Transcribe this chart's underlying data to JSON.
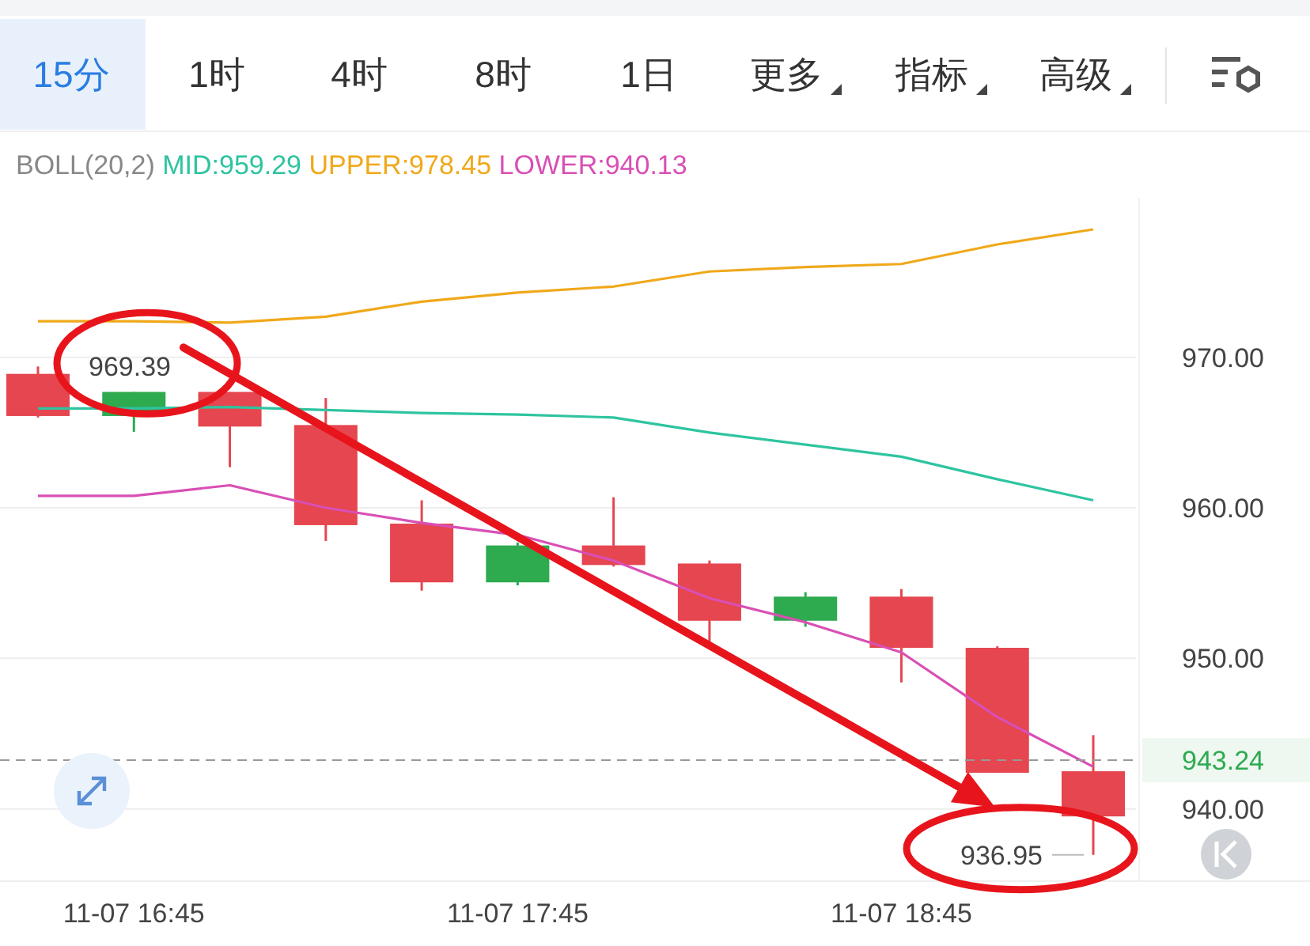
{
  "chart_data": {
    "type": "candlestick",
    "legend_title": "BOLL(20,2)",
    "legend": "top",
    "grid": "y",
    "categories": [
      null,
      "11-07 16:45",
      null,
      null,
      null,
      "11-07 17:45",
      null,
      null,
      null,
      "11-07 18:45",
      null,
      null
    ],
    "ylim": [
      935.2,
      980.6
    ],
    "yticks": [
      {
        "value": 940,
        "label": "940.00"
      },
      {
        "value": 950,
        "label": "950.00"
      },
      {
        "value": 960,
        "label": "960.00"
      },
      {
        "value": 970,
        "label": "970.00"
      }
    ],
    "series": [
      {
        "type": "line",
        "name": "MID:959.29",
        "color": "#2ec4a0",
        "values": [
          966.6,
          966.6,
          966.7,
          966.5,
          966.3,
          966.2,
          966.0,
          965.0,
          964.2,
          963.4,
          961.9,
          960.5
        ]
      },
      {
        "type": "line",
        "name": "UPPER:978.45",
        "color": "#f0a81a",
        "values": [
          972.4,
          972.4,
          972.3,
          972.7,
          973.7,
          974.3,
          974.7,
          975.7,
          976.0,
          976.2,
          977.5,
          978.5
        ]
      },
      {
        "type": "line",
        "name": "LOWER:940.13",
        "color": "#d94fb5",
        "values": [
          960.8,
          960.8,
          961.5,
          960.0,
          959.0,
          958.2,
          956.5,
          954.0,
          952.4,
          950.4,
          946.1,
          942.8
        ]
      },
      {
        "colors": [
          "#e5464f",
          "#2eaa4f",
          "#e5464f",
          "#e5464f",
          "#e5464f",
          "#2eaa4f",
          "#e5464f",
          "#e5464f",
          "#2eaa4f",
          "#e5464f",
          "#e5464f",
          "#e5464f"
        ],
        "ohlc": [
          [
            968.9,
            969.39,
            966.0,
            966.1
          ],
          [
            966.1,
            967.7,
            965.05,
            967.7
          ],
          [
            967.7,
            967.7,
            962.7,
            965.4
          ],
          [
            965.5,
            967.3,
            957.8,
            958.85
          ],
          [
            958.95,
            960.5,
            954.5,
            955.05
          ],
          [
            955.05,
            957.7,
            954.85,
            957.5
          ],
          [
            957.5,
            960.7,
            956.1,
            956.2
          ],
          [
            956.3,
            956.5,
            950.95,
            952.5
          ],
          [
            952.5,
            954.4,
            952.1,
            954.1
          ],
          [
            954.1,
            954.6,
            948.4,
            950.7
          ],
          [
            950.7,
            950.8,
            942.4,
            942.4
          ],
          [
            942.5,
            944.9,
            936.95,
            939.5
          ]
        ]
      }
    ],
    "ref_lines": [
      {
        "axis": "y",
        "value": 943.24,
        "label": "943.24",
        "line_style": "dashed"
      }
    ],
    "annotations": [
      "15分",
      "1时",
      "4时",
      "8时",
      "1日",
      "更多",
      "指标",
      "高级",
      "969.39",
      "936.95"
    ]
  }
}
